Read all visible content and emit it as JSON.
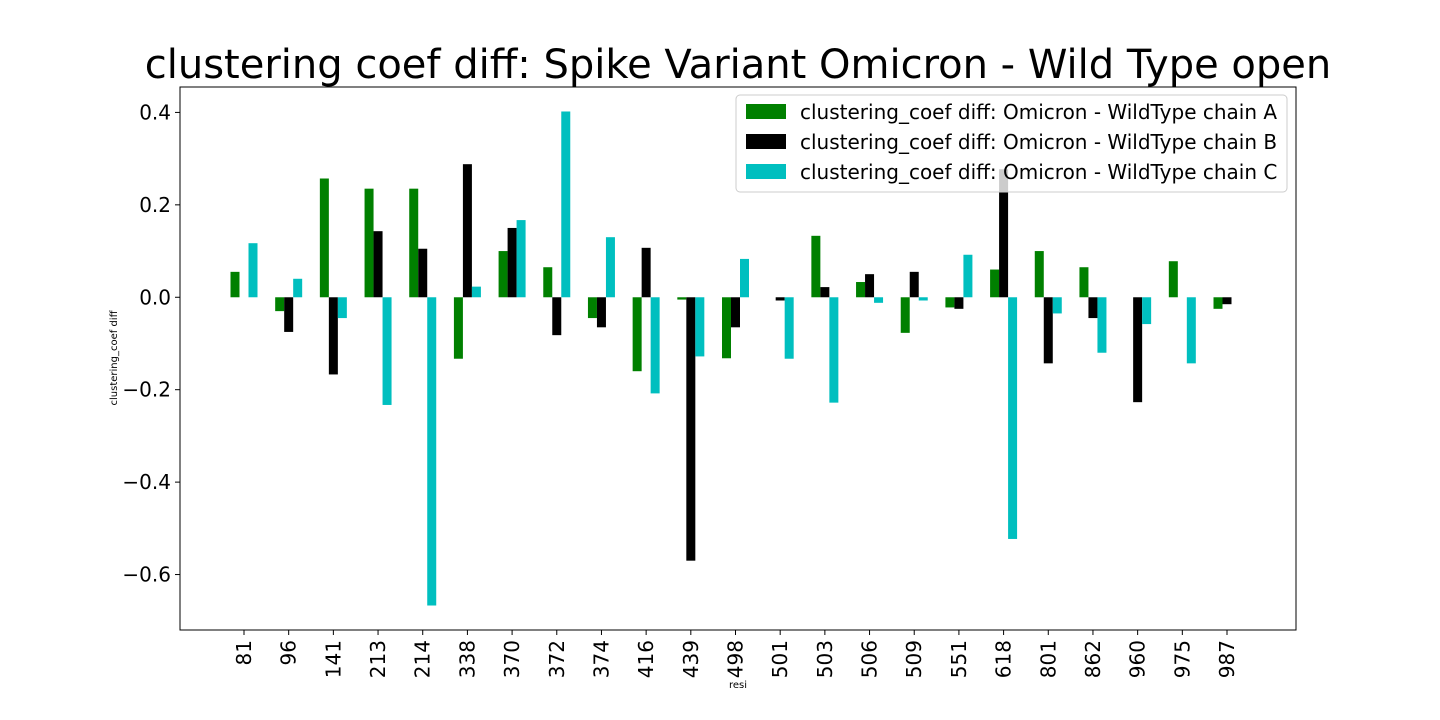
{
  "chart_data": {
    "type": "bar",
    "title": "clustering coef diff: Spike Variant Omicron - Wild Type open",
    "xlabel": "resi",
    "ylabel": "clustering_coef diff",
    "ylim": [
      -0.72,
      0.455
    ],
    "yticks": [
      0.4,
      0.2,
      0.0,
      -0.2,
      -0.4,
      -0.6
    ],
    "ytick_labels": [
      "0.4",
      "0.2",
      "0.0",
      "−0.2",
      "−0.4",
      "−0.6"
    ],
    "categories": [
      "81",
      "96",
      "141",
      "213",
      "214",
      "338",
      "370",
      "372",
      "374",
      "416",
      "439",
      "498",
      "501",
      "503",
      "506",
      "509",
      "551",
      "618",
      "801",
      "862",
      "960",
      "975",
      "987"
    ],
    "legend_position": "top-right",
    "grid": false,
    "series": [
      {
        "name": "clustering_coef diff: Omicron - WildType chain A",
        "color": "#008000",
        "values": [
          0.055,
          -0.03,
          0.257,
          0.235,
          0.235,
          -0.133,
          0.1,
          0.065,
          -0.045,
          -0.16,
          -0.005,
          -0.132,
          0,
          0.133,
          0.033,
          -0.077,
          -0.022,
          0.06,
          0.1,
          0.065,
          0,
          0.078,
          -0.025
        ]
      },
      {
        "name": "clustering_coef diff: Omicron - WildType chain B",
        "color": "#000000",
        "values": [
          0,
          -0.075,
          -0.167,
          0.143,
          0.105,
          0.288,
          0.15,
          -0.082,
          -0.065,
          0.107,
          -0.57,
          -0.065,
          -0.007,
          0.022,
          0.05,
          0.055,
          -0.025,
          0.277,
          -0.143,
          -0.045,
          -0.227,
          0,
          -0.015
        ]
      },
      {
        "name": "clustering_coef diff: Omicron - WildType chain C",
        "color": "#00bfbf",
        "values": [
          0.117,
          0.04,
          -0.045,
          -0.233,
          -0.667,
          0.023,
          0.167,
          0.402,
          0.13,
          -0.208,
          -0.128,
          0.083,
          -0.133,
          -0.228,
          -0.012,
          -0.007,
          0.092,
          -0.523,
          -0.035,
          -0.12,
          -0.058,
          -0.143,
          0
        ]
      }
    ]
  }
}
